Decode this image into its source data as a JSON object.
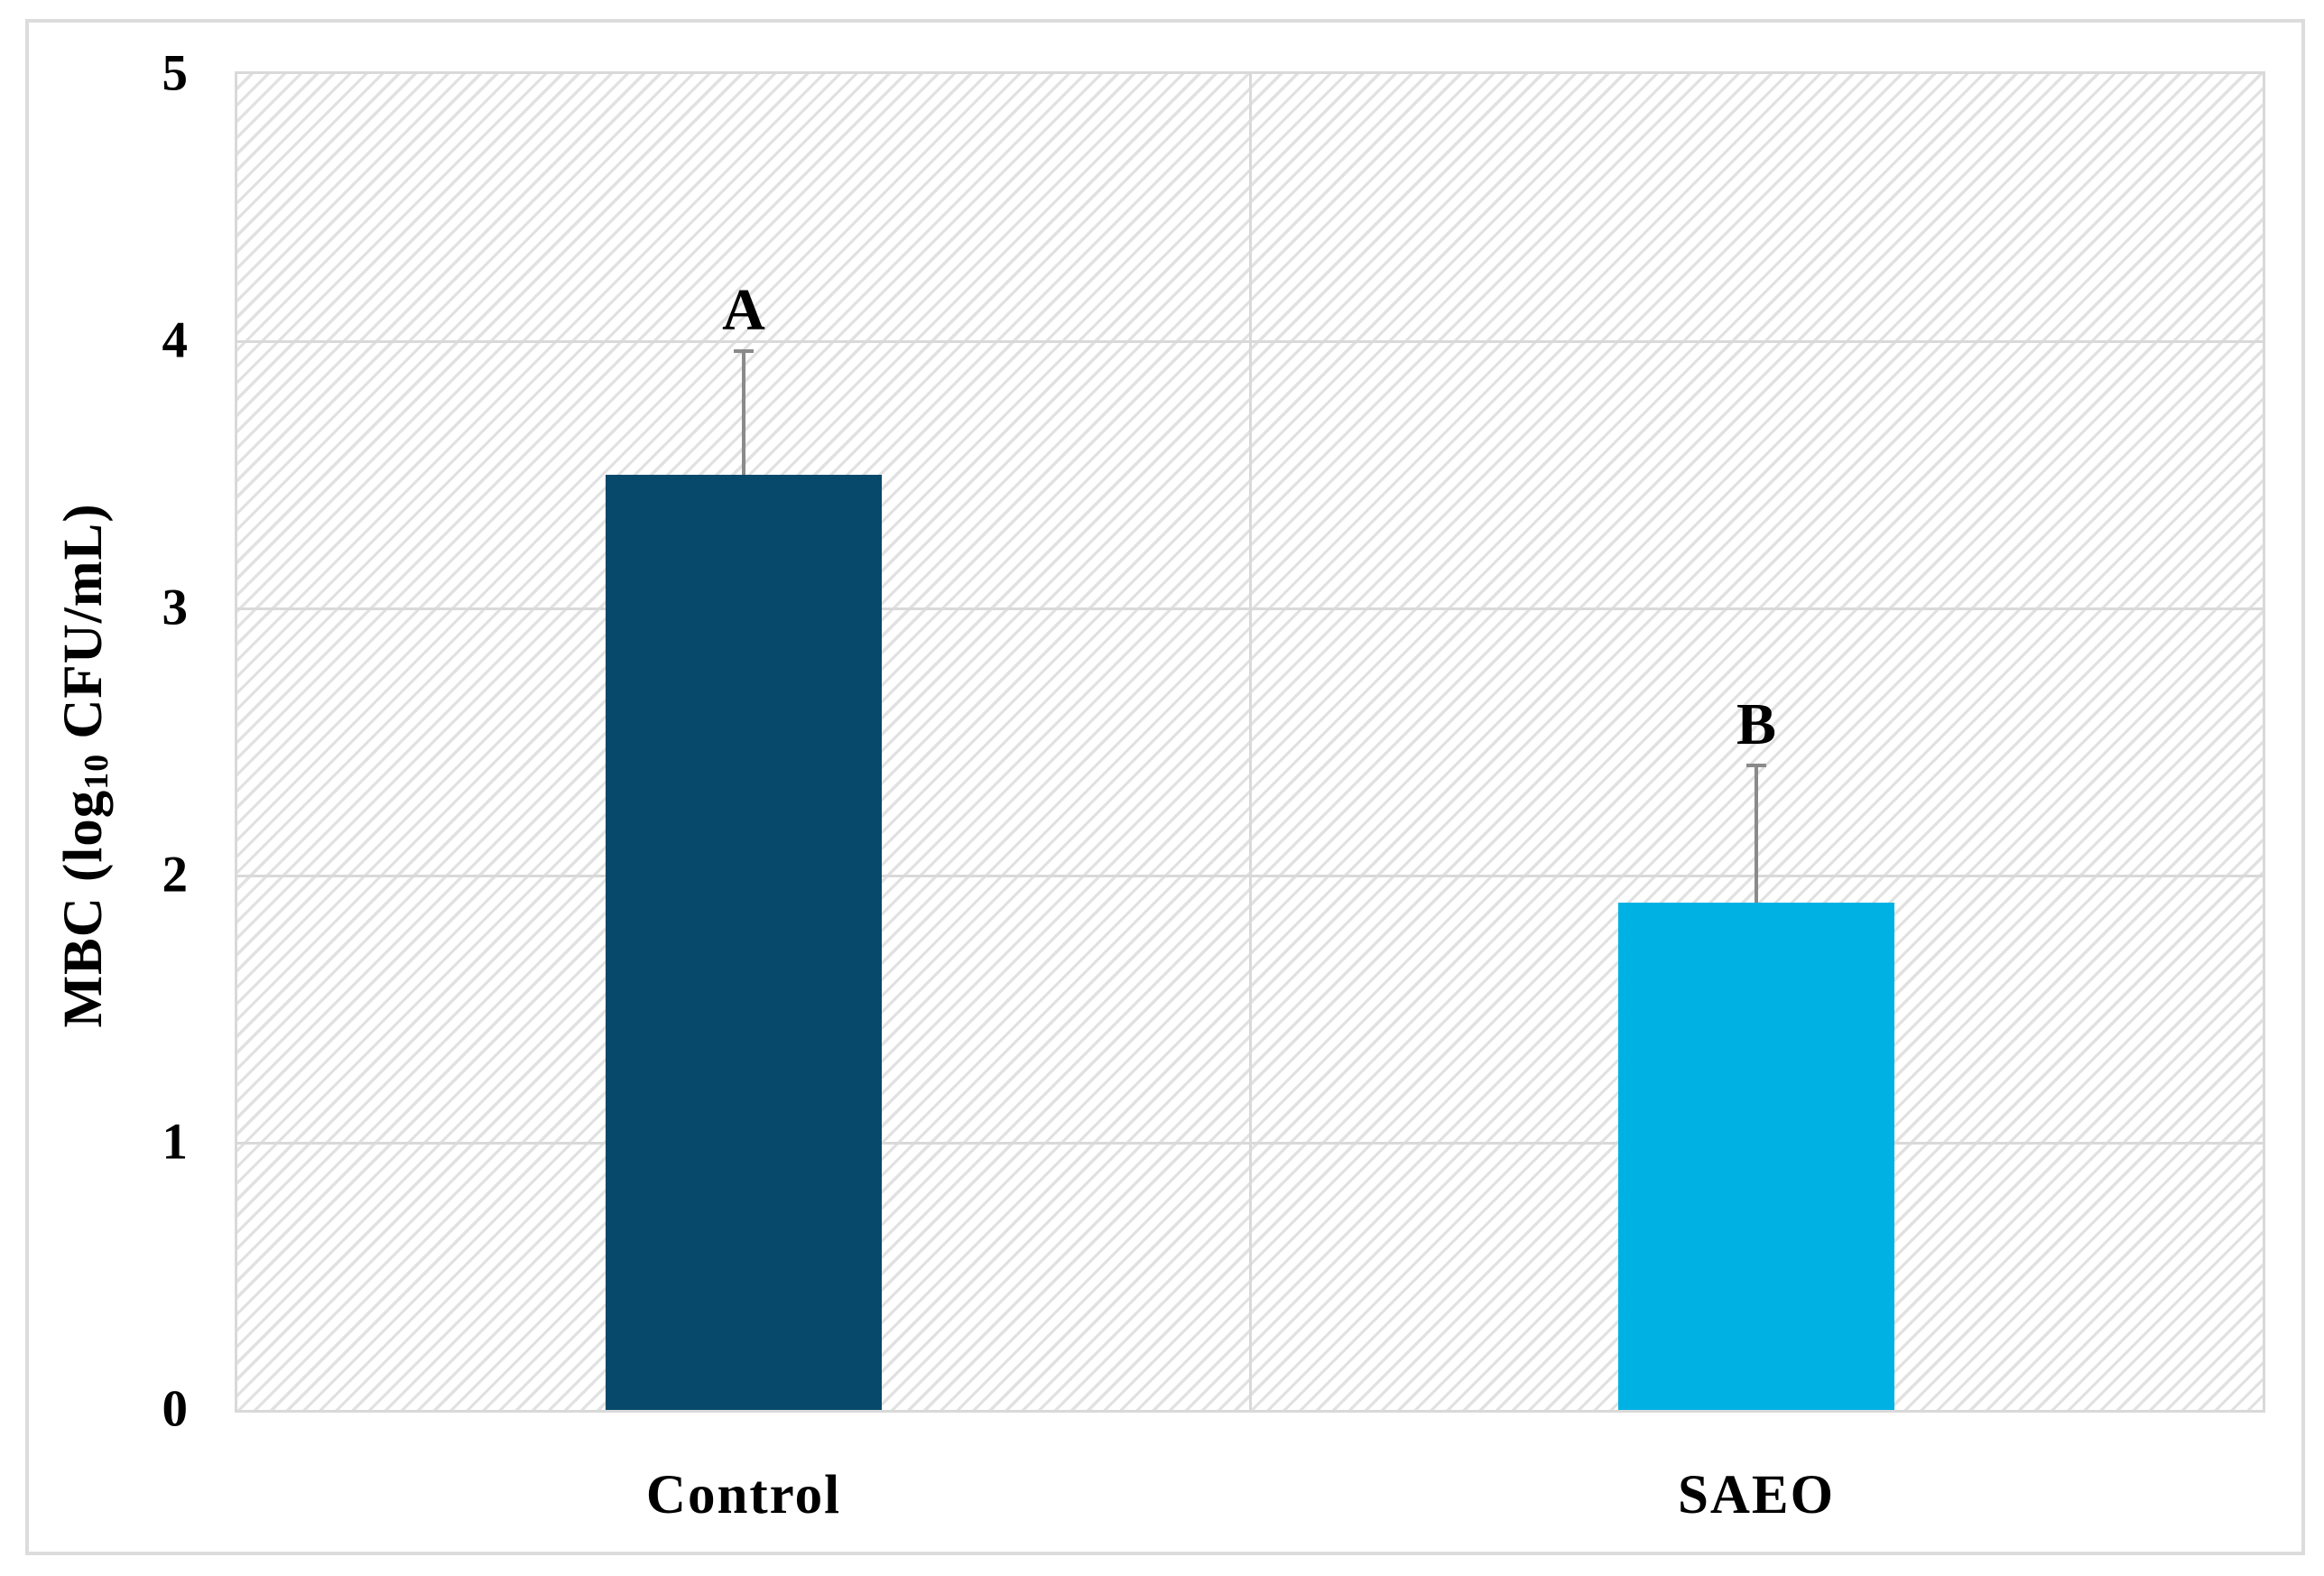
{
  "chart_data": {
    "type": "bar",
    "categories": [
      "Control",
      "SAEO"
    ],
    "values": [
      3.5,
      1.9
    ],
    "errors_plus": [
      0.47,
      0.52
    ],
    "significance_labels": [
      "A",
      "B"
    ],
    "ylabel": {
      "text": "MBC (log10 CFU/mL)",
      "prefix": "MBC (log",
      "subscript": "10",
      "suffix": " CFU/mL)"
    },
    "xlabel": "",
    "title": "",
    "ylim": [
      0,
      5
    ],
    "yticks": [
      "0",
      "1",
      "2",
      "3",
      "4",
      "5"
    ],
    "legend": "none",
    "grid": "horizontal lines at 1,2,3,4 plus one vertical category divider",
    "plot_background": "diagonal-hatch",
    "colors": {
      "bar_control": "#07496a",
      "bar_saeo": "#00b1e4",
      "gridline": "#d9d9d9",
      "error_bar": "#8a8a8a",
      "hatch_line": "#e1e1e1",
      "figure_border": "#dcdcdc"
    }
  }
}
